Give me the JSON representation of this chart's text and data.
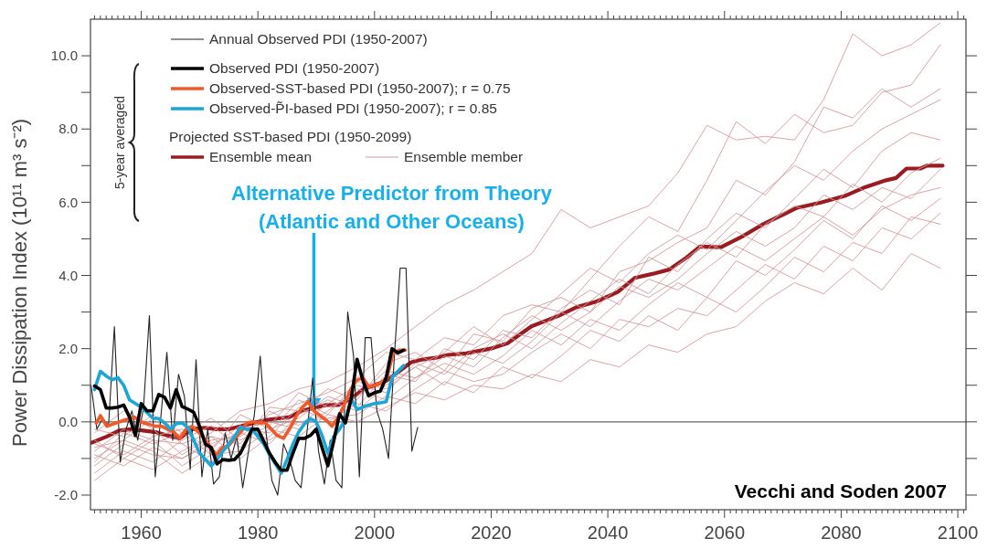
{
  "chart_data": {
    "type": "line",
    "ylabel": "Power Dissipation Index (10¹¹ m³ s⁻²)",
    "xlim": [
      1951.3,
      2101.4
    ],
    "ylim": [
      -2.4,
      11.0
    ],
    "xticks": [
      {
        "value": 1952,
        "label": null
      },
      {
        "value": 1953,
        "label": null
      },
      {
        "value": 1954,
        "label": null
      },
      {
        "value": 1955,
        "label": null
      },
      {
        "value": 1956,
        "label": null
      },
      {
        "value": 1957,
        "label": null
      },
      {
        "value": 1958,
        "label": null
      },
      {
        "value": 1959,
        "label": null
      },
      1960,
      {
        "value": 1961,
        "label": null
      },
      {
        "value": 1962,
        "label": null
      },
      {
        "value": 1963,
        "label": null
      },
      {
        "value": 1964,
        "label": null
      },
      {
        "value": 1965,
        "label": null
      },
      {
        "value": 1966,
        "label": null
      },
      {
        "value": 1967,
        "label": null
      },
      {
        "value": 1968,
        "label": null
      },
      {
        "value": 1969,
        "label": null
      },
      {
        "value": 1970,
        "label": null
      },
      {
        "value": 1971,
        "label": null
      },
      {
        "value": 1972,
        "label": null
      },
      {
        "value": 1973,
        "label": null
      },
      {
        "value": 1974,
        "label": null
      },
      {
        "value": 1975,
        "label": null
      },
      {
        "value": 1976,
        "label": null
      },
      {
        "value": 1977,
        "label": null
      },
      {
        "value": 1978,
        "label": null
      },
      {
        "value": 1979,
        "label": null
      },
      1980,
      {
        "value": 1981,
        "label": null
      },
      {
        "value": 1982,
        "label": null
      },
      {
        "value": 1983,
        "label": null
      },
      {
        "value": 1984,
        "label": null
      },
      {
        "value": 1985,
        "label": null
      },
      {
        "value": 1986,
        "label": null
      },
      {
        "value": 1987,
        "label": null
      },
      {
        "value": 1988,
        "label": null
      },
      {
        "value": 1989,
        "label": null
      },
      {
        "value": 1990,
        "label": null
      },
      {
        "value": 1991,
        "label": null
      },
      {
        "value": 1992,
        "label": null
      },
      {
        "value": 1993,
        "label": null
      },
      {
        "value": 1994,
        "label": null
      },
      {
        "value": 1995,
        "label": null
      },
      {
        "value": 1996,
        "label": null
      },
      {
        "value": 1997,
        "label": null
      },
      {
        "value": 1998,
        "label": null
      },
      {
        "value": 1999,
        "label": null
      },
      2000,
      {
        "value": 2001,
        "label": null
      },
      {
        "value": 2002,
        "label": null
      },
      {
        "value": 2003,
        "label": null
      },
      {
        "value": 2004,
        "label": null
      },
      {
        "value": 2005,
        "label": null
      },
      {
        "value": 2006,
        "label": null
      },
      {
        "value": 2007,
        "label": null
      },
      {
        "value": 2008,
        "label": null
      },
      {
        "value": 2009,
        "label": null
      },
      {
        "value": 2010,
        "label": null
      },
      {
        "value": 2011,
        "label": null
      },
      {
        "value": 2012,
        "label": null
      },
      {
        "value": 2013,
        "label": null
      },
      {
        "value": 2014,
        "label": null
      },
      {
        "value": 2015,
        "label": null
      },
      {
        "value": 2016,
        "label": null
      },
      {
        "value": 2017,
        "label": null
      },
      {
        "value": 2018,
        "label": null
      },
      {
        "value": 2019,
        "label": null
      },
      2020,
      {
        "value": 2021,
        "label": null
      },
      {
        "value": 2022,
        "label": null
      },
      {
        "value": 2023,
        "label": null
      },
      {
        "value": 2024,
        "label": null
      },
      {
        "value": 2025,
        "label": null
      },
      {
        "value": 2026,
        "label": null
      },
      {
        "value": 2027,
        "label": null
      },
      {
        "value": 2028,
        "label": null
      },
      {
        "value": 2029,
        "label": null
      },
      {
        "value": 2030,
        "label": null
      },
      {
        "value": 2031,
        "label": null
      },
      {
        "value": 2032,
        "label": null
      },
      {
        "value": 2033,
        "label": null
      },
      {
        "value": 2034,
        "label": null
      },
      {
        "value": 2035,
        "label": null
      },
      {
        "value": 2036,
        "label": null
      },
      {
        "value": 2037,
        "label": null
      },
      {
        "value": 2038,
        "label": null
      },
      {
        "value": 2039,
        "label": null
      },
      2040,
      {
        "value": 2041,
        "label": null
      },
      {
        "value": 2042,
        "label": null
      },
      {
        "value": 2043,
        "label": null
      },
      {
        "value": 2044,
        "label": null
      },
      {
        "value": 2045,
        "label": null
      },
      {
        "value": 2046,
        "label": null
      },
      {
        "value": 2047,
        "label": null
      },
      {
        "value": 2048,
        "label": null
      },
      {
        "value": 2049,
        "label": null
      },
      {
        "value": 2050,
        "label": null
      },
      {
        "value": 2051,
        "label": null
      },
      {
        "value": 2052,
        "label": null
      },
      {
        "value": 2053,
        "label": null
      },
      {
        "value": 2054,
        "label": null
      },
      {
        "value": 2055,
        "label": null
      },
      {
        "value": 2056,
        "label": null
      },
      {
        "value": 2057,
        "label": null
      },
      {
        "value": 2058,
        "label": null
      },
      {
        "value": 2059,
        "label": null
      },
      2060,
      {
        "value": 2061,
        "label": null
      },
      {
        "value": 2062,
        "label": null
      },
      {
        "value": 2063,
        "label": null
      },
      {
        "value": 2064,
        "label": null
      },
      {
        "value": 2065,
        "label": null
      },
      {
        "value": 2066,
        "label": null
      },
      {
        "value": 2067,
        "label": null
      },
      {
        "value": 2068,
        "label": null
      },
      {
        "value": 2069,
        "label": null
      },
      {
        "value": 2070,
        "label": null
      },
      {
        "value": 2071,
        "label": null
      },
      {
        "value": 2072,
        "label": null
      },
      {
        "value": 2073,
        "label": null
      },
      {
        "value": 2074,
        "label": null
      },
      {
        "value": 2075,
        "label": null
      },
      {
        "value": 2076,
        "label": null
      },
      {
        "value": 2077,
        "label": null
      },
      {
        "value": 2078,
        "label": null
      },
      {
        "value": 2079,
        "label": null
      },
      2080,
      {
        "value": 2081,
        "label": null
      },
      {
        "value": 2082,
        "label": null
      },
      {
        "value": 2083,
        "label": null
      },
      {
        "value": 2084,
        "label": null
      },
      {
        "value": 2085,
        "label": null
      },
      {
        "value": 2086,
        "label": null
      },
      {
        "value": 2087,
        "label": null
      },
      {
        "value": 2088,
        "label": null
      },
      {
        "value": 2089,
        "label": null
      },
      {
        "value": 2090,
        "label": null
      },
      {
        "value": 2091,
        "label": null
      },
      {
        "value": 2092,
        "label": null
      },
      {
        "value": 2093,
        "label": null
      },
      {
        "value": 2094,
        "label": null
      },
      {
        "value": 2095,
        "label": null
      },
      {
        "value": 2096,
        "label": null
      },
      {
        "value": 2097,
        "label": null
      },
      {
        "value": 2098,
        "label": null
      },
      {
        "value": 2099,
        "label": null
      },
      2100,
      {
        "value": 2101,
        "label": null
      }
    ],
    "yticks": [
      {
        "value": -2,
        "label": "-2.0"
      },
      {
        "value": -1,
        "label": null
      },
      {
        "value": 0,
        "label": "0.0"
      },
      {
        "value": 1,
        "label": null
      },
      {
        "value": 2,
        "label": "2.0"
      },
      {
        "value": 3,
        "label": null
      },
      {
        "value": 4,
        "label": "4.0"
      },
      {
        "value": 5,
        "label": null
      },
      {
        "value": 6,
        "label": "6.0"
      },
      {
        "value": 7,
        "label": null
      },
      {
        "value": 8,
        "label": "8.0"
      },
      {
        "value": 9,
        "label": null
      },
      {
        "value": 10,
        "label": "10.0"
      }
    ],
    "legend": "top left",
    "ref_lines": [
      {
        "axis": "y",
        "value": 0,
        "color": "#666666"
      }
    ],
    "annotations": [
      "5-year averaged",
      "Projected SST-based PDI (1950-2099)",
      {
        "text": "Alternative Predictor from Theory (Atlantic and Other Oceans)",
        "x": 1989.6,
        "y": 0.3
      },
      "Vecchi and Soden 2007"
    ],
    "x": [
      1952,
      1957,
      1962,
      1967,
      1972,
      1977,
      1982,
      1987,
      1992,
      1997,
      2002,
      2007,
      2012,
      2017,
      2022,
      2027,
      2032,
      2037,
      2042,
      2047,
      2052,
      2057,
      2062,
      2067,
      2072,
      2077,
      2082,
      2087,
      2092,
      2097
    ],
    "series": [
      {
        "name": "Annual Observed PDI (1950-2007)",
        "color": "#222222",
        "x": [
          1951.4,
          1952.4,
          1953.4,
          1954.4,
          1955.4,
          1956.4,
          1957.4,
          1958.4,
          1959.4,
          1960.4,
          1961.4,
          1962.4,
          1963.4,
          1964.4,
          1965.4,
          1966.4,
          1967.4,
          1968.4,
          1969.4,
          1970.4,
          1971.4,
          1972.4,
          1973.4,
          1974.4,
          1975.4,
          1976.4,
          1977.4,
          1978.4,
          1979.4,
          1980.4,
          1981.4,
          1982.4,
          1983.4,
          1984.4,
          1985.4,
          1986.4,
          1987.4,
          1988.4,
          1989.4,
          1990.4,
          1991.4,
          1992.4,
          1993.4,
          1994.4,
          1995.4,
          1996.4,
          1997.4,
          1998.4,
          1999.4,
          2000.4,
          2001.4,
          2002.4,
          2003.4,
          2004.4,
          2005.4,
          2006.4,
          2007.4
        ],
        "values": [
          1.0,
          -0.2,
          0.1,
          -0.1,
          2.6,
          -1.1,
          -0.2,
          0.3,
          -0.5,
          0.4,
          2.9,
          -1.5,
          0.2,
          1.9,
          -0.5,
          1.3,
          0.7,
          -1.3,
          1.7,
          -1.5,
          -0.2,
          -1.7,
          -1.5,
          -0.3,
          -1.0,
          -0.4,
          -1.8,
          -0.8,
          0.2,
          1.8,
          -0.3,
          -1.6,
          -2.0,
          -0.6,
          -1.0,
          -1.6,
          -1.8,
          -0.3,
          1.2,
          -0.8,
          -1.7,
          -0.5,
          -1.6,
          -1.8,
          3.0,
          1.8,
          -1.5,
          2.3,
          2.3,
          0.3,
          -0.2,
          -1.0,
          1.8,
          4.2,
          4.2,
          -0.8,
          -0.15
        ]
      },
      {
        "name": "Observed PDI (1950-2007)",
        "color": "#000000",
        "x": [
          1952,
          1953,
          1954,
          1955,
          1956,
          1957,
          1958,
          1959,
          1960,
          1961,
          1962,
          1963,
          1964,
          1965,
          1966,
          1967,
          1968,
          1969,
          1970,
          1971,
          1972,
          1973,
          1974,
          1975,
          1976,
          1977,
          1978,
          1979,
          1980,
          1981,
          1982,
          1983,
          1984,
          1985,
          1986,
          1987,
          1988,
          1989,
          1990,
          1991,
          1992,
          1993,
          1994,
          1995,
          1996,
          1997,
          1998,
          1999,
          2000,
          2001,
          2002,
          2003,
          2004,
          2005
        ],
        "values": [
          0.98,
          0.88,
          0.38,
          0.38,
          0.4,
          0.46,
          0.13,
          -0.37,
          0.5,
          0.3,
          0.3,
          0.75,
          0.67,
          0.38,
          0.88,
          0.42,
          0.35,
          0.26,
          -0.12,
          -0.61,
          -0.7,
          -1.15,
          -1.03,
          -1.05,
          -1.03,
          -0.86,
          -0.53,
          -0.2,
          -0.2,
          -0.53,
          -0.86,
          -1.11,
          -1.32,
          -1.32,
          -0.86,
          -0.45,
          -0.45,
          -0.37,
          -0.2,
          -0.7,
          -1.2,
          -0.53,
          0.22,
          -0.03,
          0.63,
          1.71,
          1.13,
          0.71,
          0.8,
          0.84,
          1.21,
          2.0,
          1.88,
          1.96
        ]
      },
      {
        "name": "Observed-SST-based PDI (1950-2007); r = 0.75",
        "color": "#f05a28",
        "x": [
          1952.3,
          1953,
          1954.1,
          1955.7,
          1957.2,
          1958.8,
          1960.4,
          1961.4,
          1962.5,
          1963.5,
          1964.5,
          1965.6,
          1966.6,
          1967.7,
          1968.7,
          1969.8,
          1970.8,
          1971.9,
          1972.9,
          1973.9,
          1975,
          1976,
          1977.1,
          1978.1,
          1979.2,
          1980.2,
          1981.3,
          1982.3,
          1983.3,
          1984.4,
          1985.4,
          1986.5,
          1987.5,
          1988.6,
          1989.6,
          1990.7,
          1991.7,
          1992.7,
          1993.8,
          1994.8,
          1995.9,
          1996.9,
          1998,
          1999,
          2000,
          2001,
          2002.1,
          2003.2,
          2004.2,
          2005.3
        ],
        "values": [
          -0.03,
          0.17,
          -0.12,
          -0.03,
          0.05,
          0.13,
          -0.03,
          -0.07,
          -0.12,
          -0.12,
          -0.2,
          -0.28,
          -0.45,
          -0.2,
          -0.12,
          -0.28,
          -0.45,
          -0.7,
          -0.9,
          -0.7,
          -0.65,
          -0.45,
          -0.28,
          -0.03,
          0,
          -0.03,
          -0.03,
          -0.2,
          -0.37,
          -0.45,
          -0.2,
          0.13,
          0.38,
          0.55,
          0.3,
          0.17,
          0.05,
          -0.12,
          0.13,
          0.46,
          0.88,
          1.13,
          1.21,
          0.96,
          1.0,
          1.05,
          1.2,
          1.88,
          1.96,
          1.96
        ]
      },
      {
        "name": "Observed-P̃I-based PDI (1950-2007); r = 0.85",
        "color": "#1ba6d8",
        "x": [
          1952,
          1953,
          1954,
          1955,
          1956,
          1957,
          1958,
          1959,
          1960,
          1961,
          1962,
          1963,
          1964,
          1965,
          1966,
          1967,
          1968,
          1969,
          1970,
          1971,
          1972,
          1973,
          1974,
          1975,
          1976,
          1977,
          1978,
          1979,
          1980,
          1981,
          1982,
          1983,
          1984,
          1985,
          1986,
          1987,
          1988,
          1989,
          1990,
          1991,
          1992,
          1993,
          1994,
          1995,
          1996,
          1997,
          1998,
          1999,
          2000,
          2001,
          2002,
          2003,
          2004,
          2005
        ],
        "values": [
          0.88,
          1.38,
          1.25,
          1.15,
          1.21,
          1.0,
          0.6,
          0.5,
          0.4,
          0.25,
          0.1,
          0.09,
          -0.03,
          -0.2,
          -0.05,
          -0.03,
          -0.15,
          -0.5,
          -0.85,
          -1.03,
          -1.2,
          -1.03,
          -0.8,
          -0.61,
          -0.4,
          -0.15,
          -0.2,
          -0.2,
          -0.4,
          -0.6,
          -0.9,
          -1.15,
          -1.4,
          -1.03,
          -0.61,
          -0.28,
          -0.05,
          0.09,
          0.0,
          -0.37,
          -0.86,
          -0.4,
          -0.2,
          0.05,
          0.63,
          0.34,
          0.4,
          0.46,
          0.5,
          0.52,
          0.55,
          1.21,
          1.38,
          1.54
        ]
      },
      {
        "name": "Ensemble mean",
        "color": "#9b1c20",
        "x": [
          1951.5,
          1954.1,
          1956.2,
          1958.3,
          1960.4,
          1962.5,
          1964.5,
          1966.6,
          1968.7,
          1970.8,
          1972.9,
          1975,
          1977.1,
          1979.2,
          1981.3,
          1983.3,
          1985.4,
          1987.5,
          1989.6,
          1991.7,
          1993.8,
          1995.9,
          1998,
          2000,
          2002.1,
          2004.2,
          2006.3,
          2008.4,
          2010.5,
          2012.6,
          2015.7,
          2019.9,
          2022.8,
          2026.9,
          2031.6,
          2034.6,
          2038.1,
          2041.7,
          2044.6,
          2047.6,
          2050.5,
          2053.5,
          2055.8,
          2059.4,
          2062.9,
          2066.4,
          2070,
          2072.3,
          2076.5,
          2080.6,
          2084.1,
          2087.7,
          2089.4,
          2091.2,
          2093.6,
          2094.7,
          2097.4
        ],
        "values": [
          -0.57,
          -0.4,
          -0.24,
          -0.2,
          -0.24,
          -0.28,
          -0.37,
          -0.45,
          -0.2,
          -0.16,
          -0.2,
          -0.2,
          -0.12,
          -0.03,
          0.05,
          0.09,
          0.13,
          0.3,
          0.38,
          0.46,
          0.46,
          0.63,
          0.88,
          1.0,
          1.13,
          1.38,
          1.63,
          1.71,
          1.75,
          1.83,
          1.87,
          2.0,
          2.15,
          2.61,
          2.9,
          3.13,
          3.29,
          3.55,
          3.93,
          4.04,
          4.16,
          4.49,
          4.79,
          4.77,
          5.05,
          5.38,
          5.66,
          5.84,
          5.99,
          6.17,
          6.41,
          6.6,
          6.66,
          6.92,
          6.92,
          7.0,
          7.0
        ]
      },
      {
        "name": "Ensemble member",
        "color": "#d49a9c",
        "values": [
          -0.8,
          -0.2,
          -0.5,
          -0.6,
          -0.3,
          0.3,
          0.5,
          0.9,
          1.1,
          1.5,
          2.0,
          2.6,
          3.2,
          3.6,
          4.1,
          4.6,
          5.8,
          5.3,
          5.6,
          5.9,
          6.8,
          8.1,
          7.7,
          7.8,
          7.7,
          8.8,
          10.6,
          10.0,
          10.3,
          10.9
        ]
      },
      {
        "color": "#d49a9c",
        "values": [
          -1.2,
          -0.6,
          -0.9,
          -1.0,
          -0.5,
          -0.4,
          0.2,
          0.5,
          0.8,
          1.2,
          1.9,
          1.7,
          2.3,
          2.1,
          2.9,
          3.2,
          3.0,
          3.9,
          4.8,
          5.6,
          5.2,
          6.6,
          8.2,
          7.6,
          8.4,
          7.9,
          8.1,
          9.0,
          9.2,
          10.3
        ]
      },
      {
        "color": "#d49a9c",
        "values": [
          -0.3,
          0.3,
          -0.2,
          -0.9,
          -0.4,
          -0.6,
          0.4,
          0.3,
          0.9,
          0.6,
          1.6,
          1.9,
          1.4,
          2.4,
          2.2,
          3.1,
          3.4,
          3.0,
          4.1,
          4.4,
          4.9,
          5.3,
          6.6,
          6.2,
          7.1,
          8.6,
          8.3,
          9.1,
          8.6,
          9.1
        ]
      },
      {
        "color": "#d49a9c",
        "values": [
          -1.0,
          -0.5,
          0.1,
          -0.6,
          -1.1,
          -0.2,
          -0.3,
          0.6,
          0.2,
          1.1,
          0.9,
          1.5,
          1.9,
          2.6,
          2.1,
          2.8,
          3.5,
          4.2,
          3.8,
          4.6,
          5.1,
          4.7,
          5.5,
          6.3,
          7.0,
          6.6,
          7.4,
          8.0,
          8.4,
          8.8
        ]
      },
      {
        "color": "#d49a9c",
        "values": [
          -0.6,
          -0.9,
          -0.4,
          -0.2,
          -0.8,
          0.2,
          -0.2,
          0.1,
          0.7,
          0.4,
          1.3,
          1.1,
          2.0,
          1.7,
          2.5,
          2.3,
          3.1,
          3.6,
          3.2,
          4.5,
          4.1,
          5.0,
          5.7,
          5.3,
          6.1,
          6.9,
          6.4,
          7.4,
          7.9,
          7.7
        ]
      },
      {
        "color": "#d49a9c",
        "values": [
          -1.4,
          -0.8,
          -1.1,
          -0.5,
          -0.1,
          -0.7,
          0.3,
          -0.1,
          0.5,
          1.0,
          0.8,
          1.6,
          1.3,
          2.0,
          2.4,
          2.0,
          2.7,
          3.3,
          3.9,
          3.5,
          4.3,
          4.9,
          4.5,
          5.4,
          5.9,
          5.6,
          6.5,
          6.0,
          6.8,
          7.2
        ]
      },
      {
        "color": "#d49a9c",
        "values": [
          -0.2,
          -0.4,
          0.2,
          -0.3,
          0.1,
          -0.5,
          -0.1,
          0.8,
          0.4,
          0.7,
          1.4,
          1.2,
          1.8,
          1.5,
          2.3,
          2.9,
          2.5,
          3.0,
          3.7,
          3.4,
          3.9,
          4.6,
          5.2,
          4.8,
          5.3,
          6.2,
          5.8,
          6.4,
          6.1,
          6.9
        ]
      },
      {
        "color": "#d49a9c",
        "values": [
          -0.9,
          -1.2,
          -0.7,
          -1.0,
          -0.6,
          -0.3,
          -0.6,
          0.2,
          0.6,
          0.3,
          1.0,
          1.5,
          1.0,
          1.9,
          1.6,
          2.2,
          3.0,
          2.6,
          3.3,
          3.9,
          3.6,
          4.2,
          4.8,
          4.4,
          5.0,
          5.6,
          5.1,
          5.8,
          6.2,
          6.4
        ]
      },
      {
        "color": "#d49a9c",
        "values": [
          -1.1,
          -0.3,
          -0.6,
          -0.3,
          -0.9,
          -0.2,
          0.0,
          -0.2,
          0.3,
          0.9,
          0.6,
          1.2,
          1.6,
          1.3,
          1.8,
          2.5,
          2.1,
          2.8,
          2.5,
          3.2,
          3.8,
          3.4,
          4.4,
          4.0,
          4.7,
          5.5,
          5.0,
          5.9,
          5.5,
          6.1
        ]
      },
      {
        "color": "#d49a9c",
        "values": [
          -0.5,
          -1.0,
          -1.3,
          -0.8,
          -0.4,
          -1.0,
          -0.4,
          0.4,
          0.0,
          0.5,
          0.3,
          0.9,
          1.4,
          1.1,
          1.3,
          1.9,
          2.4,
          2.0,
          2.8,
          2.6,
          3.1,
          2.9,
          3.6,
          4.3,
          3.9,
          4.8,
          4.4,
          5.3,
          5.0,
          5.7
        ]
      },
      {
        "color": "#d49a9c",
        "values": [
          -1.6,
          -1.0,
          -0.5,
          -1.2,
          -0.7,
          -0.1,
          -0.5,
          0.0,
          0.1,
          0.2,
          0.7,
          0.5,
          1.1,
          0.8,
          1.5,
          1.2,
          1.8,
          2.5,
          2.2,
          2.9,
          2.5,
          3.4,
          3.0,
          3.7,
          4.5,
          4.1,
          4.9,
          4.6,
          5.6,
          5.4
        ]
      },
      {
        "color": "#d49a9c",
        "values": [
          -0.7,
          -0.5,
          -0.8,
          -1.4,
          -0.9,
          -0.8,
          -0.2,
          -0.4,
          0.2,
          0.0,
          0.4,
          0.8,
          0.6,
          1.0,
          0.9,
          1.3,
          1.1,
          1.7,
          1.5,
          2.1,
          1.9,
          2.4,
          2.6,
          3.3,
          3.8,
          3.5,
          4.2,
          3.6,
          4.6,
          4.2
        ]
      }
    ]
  }
}
